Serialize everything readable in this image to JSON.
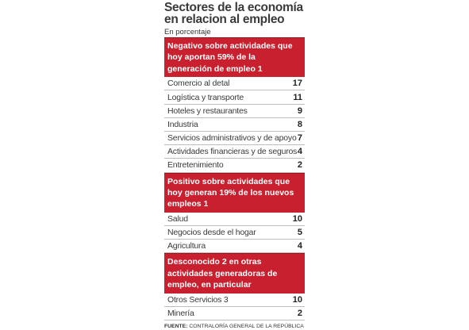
{
  "chart_data": {
    "type": "table",
    "title": "Sectores de la economía en relacion al empleo",
    "subtitle": "En porcentaje",
    "sections": [
      {
        "header": "Negativo sobre actividades que hoy aportan 59% de la generación de empleo 1",
        "rows": [
          {
            "label": "Comercio al detal",
            "value": 17
          },
          {
            "label": "Logística y transporte",
            "value": 11
          },
          {
            "label": "Hoteles y restaurantes",
            "value": 9
          },
          {
            "label": "Industria",
            "value": 8
          },
          {
            "label": "Servicios administrativos y de apoyo",
            "value": 7
          },
          {
            "label": "Actividades financieras y de seguros",
            "value": 4
          },
          {
            "label": "Entretenimiento",
            "value": 2
          }
        ]
      },
      {
        "header": "Positivo sobre actividades que hoy generan 19% de los nuevos empleos 1",
        "rows": [
          {
            "label": "Salud",
            "value": 10
          },
          {
            "label": "Negocios desde el hogar",
            "value": 5
          },
          {
            "label": "Agricultura",
            "value": 4
          }
        ]
      },
      {
        "header": "Desconocido 2 en otras actividades generadoras de empleo, en particular",
        "rows": [
          {
            "label": "Otros Servicios 3",
            "value": 10
          },
          {
            "label": "Minería",
            "value": 2
          }
        ]
      }
    ],
    "footer_label": "FUENTE:",
    "footer_text": "CONTRALORÍA GENERAL DE LA REPÚBLICA"
  },
  "colors": {
    "section_header_bg": "#c8202f",
    "row_divider": "#bdbdbd"
  }
}
